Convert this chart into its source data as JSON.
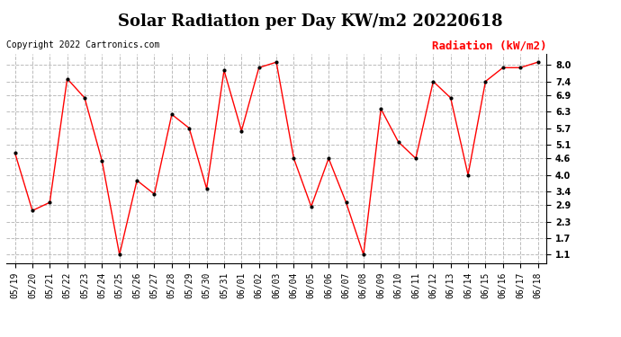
{
  "title": "Solar Radiation per Day KW/m2 20220618",
  "copyright": "Copyright 2022 Cartronics.com",
  "legend_label": "Radiation (kW/m2)",
  "dates": [
    "05/19",
    "05/20",
    "05/21",
    "05/22",
    "05/23",
    "05/24",
    "05/25",
    "05/26",
    "05/27",
    "05/28",
    "05/29",
    "05/30",
    "05/31",
    "06/01",
    "06/02",
    "06/03",
    "06/04",
    "06/05",
    "06/06",
    "06/07",
    "06/08",
    "06/09",
    "06/10",
    "06/11",
    "06/12",
    "06/13",
    "06/14",
    "06/15",
    "06/16",
    "06/17",
    "06/18"
  ],
  "values": [
    4.8,
    2.7,
    3.0,
    7.5,
    6.8,
    4.5,
    1.1,
    3.8,
    3.3,
    6.2,
    5.7,
    3.5,
    7.8,
    5.6,
    7.9,
    8.1,
    4.6,
    2.85,
    4.6,
    3.0,
    1.1,
    6.4,
    5.2,
    4.6,
    7.4,
    6.8,
    4.0,
    7.4,
    7.9,
    7.9,
    8.1
  ],
  "line_color": "red",
  "marker": ".",
  "marker_color": "black",
  "marker_size": 4,
  "grid_color": "#bbbbbb",
  "background_color": "#ffffff",
  "ylim": [
    0.8,
    8.4
  ],
  "yticks": [
    1.1,
    1.7,
    2.3,
    2.9,
    3.4,
    4.0,
    4.6,
    5.1,
    5.7,
    6.3,
    6.9,
    7.4,
    8.0
  ],
  "title_fontsize": 13,
  "copyright_fontsize": 7,
  "legend_fontsize": 9,
  "tick_fontsize": 7,
  "legend_color": "red"
}
